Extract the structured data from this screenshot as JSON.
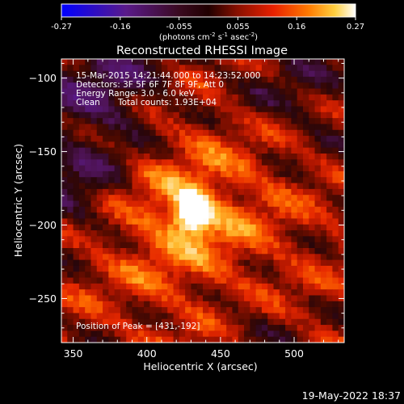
{
  "chart_data": {
    "type": "heatmap",
    "title": "Reconstructed RHESSI Image",
    "xlabel": "Heliocentric X (arcsec)",
    "ylabel": "Heliocentric Y (arcsec)",
    "xlim": [
      342,
      534
    ],
    "ylim": [
      -280,
      -87
    ],
    "xticks": [
      350,
      400,
      450,
      500
    ],
    "yticks": [
      -100,
      -150,
      -200,
      -250
    ],
    "colorbar": {
      "range": [
        -0.27,
        0.27
      ],
      "ticks": [
        "-0.27",
        "-0.16",
        "-0.055",
        "0.055",
        "0.16",
        "0.27"
      ],
      "unit_prefix": "(photons cm",
      "unit_exp1": "-2",
      "unit_mid": " s",
      "unit_exp2": "-1",
      "unit_mid2": " asec",
      "unit_exp3": "-2",
      "unit_suffix": ")"
    },
    "annotations": {
      "time_range": "15-Mar-2015 14:21:44.000 to 14:23:52.000",
      "detectors": "Detectors: 3F 5F 6F 7F 8F 9F, Att 0",
      "energy": "Energy Range: 3.0 - 6.0 keV",
      "method": "Clean",
      "counts": "Total counts: 1.93E+04",
      "peak": "Position of Peak = [431,-192]"
    },
    "peak": {
      "x": 431,
      "y": -192,
      "value": 0.27
    },
    "colormap_stops": [
      "#0000ff",
      "#4a1a8a",
      "#5a1a5a",
      "#2a0800",
      "#6a1000",
      "#cc1a00",
      "#ff5a00",
      "#ffb030",
      "#ffffff"
    ]
  },
  "footer": {
    "date": "19-May-2022 18:37"
  }
}
